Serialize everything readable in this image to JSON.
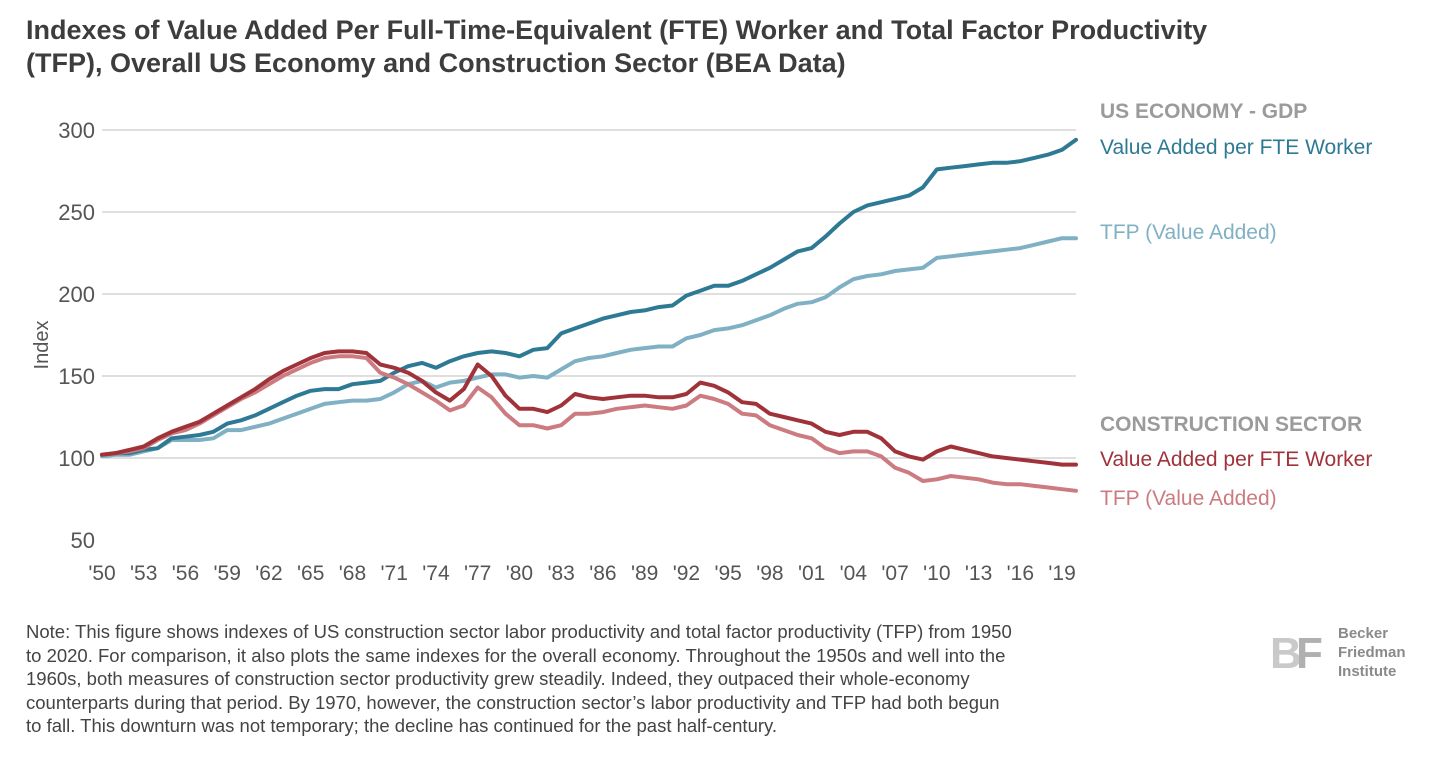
{
  "title": {
    "line1": "Indexes of Value Added Per Full-Time-Equivalent (FTE) Worker and Total Factor Productivity",
    "line2": "(TFP), Overall US Economy and Construction Sector (BEA Data)"
  },
  "colors": {
    "us_va": "#2e7a94",
    "us_tfp": "#7fb0c4",
    "con_va": "#a0323a",
    "con_tfp": "#cc7b80",
    "grid": "#bfbfbf",
    "axis_text": "#555555",
    "group_heading": "#9b9b9b"
  },
  "legend": {
    "us_heading": "US ECONOMY - GDP",
    "us_va_label": "Value Added per FTE Worker",
    "us_tfp_label": "TFP (Value Added)",
    "con_heading": "CONSTRUCTION SECTOR",
    "con_va_label": "Value Added per FTE Worker",
    "con_tfp_label": "TFP (Value Added)"
  },
  "chart_data": {
    "type": "line",
    "title": "Indexes of Value Added Per Full-Time-Equivalent (FTE) Worker and Total Factor Productivity (TFP), Overall US Economy and Construction Sector (BEA Data)",
    "xlabel": "",
    "ylabel": "Index",
    "ylim": [
      50,
      300
    ],
    "yticks": [
      300,
      250,
      200,
      150,
      100,
      50
    ],
    "xlim": [
      1950,
      2020
    ],
    "xticks": [
      1950,
      1953,
      1956,
      1959,
      1962,
      1965,
      1968,
      1971,
      1974,
      1977,
      1980,
      1983,
      1986,
      1989,
      1992,
      1995,
      1998,
      2001,
      2004,
      2007,
      2010,
      2013,
      2016,
      2019
    ],
    "xtick_labels": [
      "'50",
      "'53",
      "'56",
      "'59",
      "'62",
      "'65",
      "'68",
      "'71",
      "'74",
      "'77",
      "'80",
      "'83",
      "'86",
      "'89",
      "'92",
      "'95",
      "'98",
      "'01",
      "'04",
      "'07",
      "'10",
      "'13",
      "'16",
      "'19"
    ],
    "grid": "horizontal",
    "legend_position": "right",
    "x": [
      1950,
      1951,
      1952,
      1953,
      1954,
      1955,
      1956,
      1957,
      1958,
      1959,
      1960,
      1961,
      1962,
      1963,
      1964,
      1965,
      1966,
      1967,
      1968,
      1969,
      1970,
      1971,
      1972,
      1973,
      1974,
      1975,
      1976,
      1977,
      1978,
      1979,
      1980,
      1981,
      1982,
      1983,
      1984,
      1985,
      1986,
      1987,
      1988,
      1989,
      1990,
      1991,
      1992,
      1993,
      1994,
      1995,
      1996,
      1997,
      1998,
      1999,
      2000,
      2001,
      2002,
      2003,
      2004,
      2005,
      2006,
      2007,
      2008,
      2009,
      2010,
      2011,
      2012,
      2013,
      2014,
      2015,
      2016,
      2017,
      2018,
      2019,
      2020
    ],
    "series": [
      {
        "key": "us_va",
        "group": "US ECONOMY - GDP",
        "name": "Value Added per FTE Worker",
        "values": [
          102,
          103,
          103,
          105,
          106,
          112,
          113,
          114,
          116,
          121,
          123,
          126,
          130,
          134,
          138,
          141,
          142,
          142,
          145,
          146,
          147,
          152,
          156,
          158,
          155,
          159,
          162,
          164,
          165,
          164,
          162,
          166,
          167,
          176,
          179,
          182,
          185,
          187,
          189,
          190,
          192,
          193,
          199,
          202,
          205,
          205,
          208,
          212,
          216,
          221,
          226,
          228,
          235,
          243,
          250,
          254,
          256,
          258,
          260,
          265,
          276,
          277,
          278,
          279,
          280,
          280,
          281,
          283,
          285,
          288,
          294
        ]
      },
      {
        "key": "us_tfp",
        "group": "US ECONOMY - GDP",
        "name": "TFP (Value Added)",
        "values": [
          101,
          102,
          102,
          104,
          106,
          111,
          111,
          111,
          112,
          117,
          117,
          119,
          121,
          124,
          127,
          130,
          133,
          134,
          135,
          135,
          136,
          140,
          145,
          147,
          143,
          146,
          147,
          149,
          151,
          151,
          149,
          150,
          149,
          154,
          159,
          161,
          162,
          164,
          166,
          167,
          168,
          168,
          173,
          175,
          178,
          179,
          181,
          184,
          187,
          191,
          194,
          195,
          198,
          204,
          209,
          211,
          212,
          214,
          215,
          216,
          222,
          223,
          224,
          225,
          226,
          227,
          228,
          230,
          232,
          234,
          234
        ]
      },
      {
        "key": "con_va",
        "group": "CONSTRUCTION SECTOR",
        "name": "Value Added per FTE Worker",
        "values": [
          102,
          103,
          105,
          107,
          112,
          116,
          119,
          122,
          127,
          132,
          137,
          142,
          148,
          153,
          157,
          161,
          164,
          165,
          165,
          164,
          157,
          155,
          152,
          147,
          140,
          135,
          142,
          157,
          150,
          138,
          130,
          130,
          128,
          132,
          139,
          137,
          136,
          137,
          138,
          138,
          137,
          137,
          139,
          146,
          144,
          140,
          134,
          133,
          127,
          125,
          123,
          121,
          116,
          114,
          116,
          116,
          112,
          104,
          101,
          99,
          104,
          107,
          105,
          103,
          101,
          100,
          99,
          98,
          97,
          96,
          96
        ]
      },
      {
        "key": "con_tfp",
        "group": "CONSTRUCTION SECTOR",
        "name": "TFP (Value Added)",
        "values": [
          102,
          103,
          104,
          106,
          111,
          115,
          117,
          121,
          126,
          131,
          136,
          140,
          145,
          150,
          154,
          158,
          161,
          162,
          162,
          161,
          152,
          149,
          145,
          140,
          135,
          129,
          132,
          143,
          137,
          127,
          120,
          120,
          118,
          120,
          127,
          127,
          128,
          130,
          131,
          132,
          131,
          130,
          132,
          138,
          136,
          133,
          127,
          126,
          120,
          117,
          114,
          112,
          106,
          103,
          104,
          104,
          101,
          94,
          91,
          86,
          87,
          89,
          88,
          87,
          85,
          84,
          84,
          83,
          82,
          81,
          80
        ]
      }
    ]
  },
  "note": {
    "lines": [
      "Note: This figure shows indexes of US construction sector labor productivity and total factor productivity (TFP) from 1950",
      "to 2020. For comparison, it also plots the same indexes for the overall economy. Throughout the 1950s and well into the",
      "1960s, both measures of construction sector productivity grew steadily. Indeed, they outpaced their whole-economy",
      "counterparts during that period. By 1970, however, the construction sector’s labor productivity and TFP had both begun",
      "to fall. This downturn was not temporary; the decline has continued for the past half-century."
    ]
  },
  "logo": {
    "mark": "BF",
    "line1": "Becker",
    "line2": "Friedman",
    "line3": "Institute"
  }
}
